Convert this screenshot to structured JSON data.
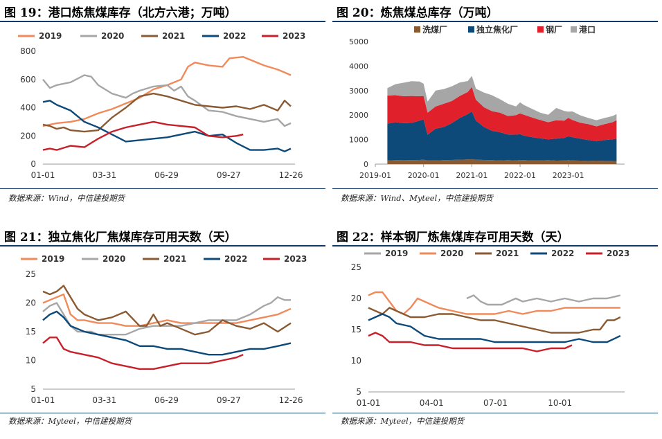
{
  "colors": {
    "y2019": "#f08a5a",
    "y2020": "#a6a6a6",
    "y2021": "#8a5a32",
    "y2022": "#0d4a7a",
    "y2023": "#c8202a",
    "washer": "#8a5a32",
    "independent": "#0d4a7a",
    "steel": "#e0202a",
    "port": "#a6a6a6",
    "rule": "#0d3a6b"
  },
  "panels": [
    {
      "title": "图 19：港口炼焦煤库存（北方六港；万吨）",
      "source": "数据来源：Wind，中信建投期货"
    },
    {
      "title": "图 20：炼焦煤总库存（万吨）",
      "source": "数据来源：Wind、Myteel，中信建投期货"
    },
    {
      "title": "图 21：独立焦化厂焦煤库存可用天数（天）",
      "source": "数据来源：Myteel，中信建投期货"
    },
    {
      "title": "图 22：样本钢厂炼焦煤库存可用天数（天）",
      "source": "数据来源：Myteel，中信建投期货"
    }
  ],
  "chart_data": [
    {
      "type": "line",
      "title": "图 19：港口炼焦煤库存（北方六港；万吨）",
      "ylim": [
        0,
        800
      ],
      "yticks": [
        0,
        200,
        400,
        600,
        800
      ],
      "xticks": [
        "01-01",
        "03-31",
        "06-29",
        "09-27",
        "12-26"
      ],
      "x_days": [
        0,
        89,
        179,
        269,
        359
      ],
      "series": [
        {
          "name": "2019",
          "key": "y2019",
          "x": [
            0,
            20,
            40,
            60,
            80,
            100,
            120,
            140,
            160,
            180,
            200,
            210,
            220,
            240,
            260,
            270,
            290,
            300,
            320,
            340,
            350,
            359
          ],
          "values": [
            270,
            290,
            300,
            320,
            360,
            390,
            430,
            470,
            530,
            560,
            600,
            690,
            720,
            700,
            690,
            750,
            760,
            740,
            700,
            670,
            650,
            630
          ]
        },
        {
          "name": "2020",
          "key": "y2020",
          "x": [
            0,
            10,
            20,
            40,
            60,
            70,
            80,
            90,
            100,
            120,
            130,
            140,
            160,
            180,
            190,
            200,
            210,
            220,
            240,
            260,
            280,
            300,
            320,
            340,
            350,
            359
          ],
          "values": [
            600,
            540,
            560,
            580,
            630,
            620,
            560,
            530,
            500,
            470,
            500,
            520,
            550,
            560,
            520,
            550,
            480,
            450,
            380,
            370,
            340,
            320,
            300,
            320,
            270,
            290
          ]
        },
        {
          "name": "2021",
          "key": "y2021",
          "x": [
            0,
            10,
            20,
            30,
            40,
            60,
            80,
            100,
            120,
            140,
            160,
            180,
            200,
            220,
            240,
            260,
            280,
            300,
            320,
            340,
            350,
            359
          ],
          "values": [
            280,
            270,
            250,
            260,
            240,
            230,
            240,
            330,
            400,
            480,
            500,
            480,
            450,
            420,
            410,
            400,
            410,
            390,
            420,
            380,
            450,
            410
          ]
        },
        {
          "name": "2022",
          "key": "y2022",
          "x": [
            0,
            10,
            20,
            40,
            60,
            80,
            100,
            120,
            140,
            160,
            180,
            200,
            220,
            240,
            260,
            280,
            300,
            320,
            340,
            350,
            359
          ],
          "values": [
            440,
            450,
            420,
            380,
            300,
            260,
            210,
            160,
            170,
            180,
            190,
            210,
            230,
            200,
            210,
            150,
            100,
            100,
            110,
            90,
            110
          ]
        },
        {
          "name": "2023",
          "key": "y2023",
          "x": [
            0,
            10,
            20,
            40,
            60,
            80,
            100,
            120,
            140,
            160,
            180,
            200,
            220,
            240,
            260,
            280,
            290
          ],
          "values": [
            100,
            110,
            100,
            130,
            120,
            180,
            230,
            260,
            280,
            300,
            280,
            270,
            260,
            200,
            190,
            200,
            210
          ]
        }
      ]
    },
    {
      "type": "area",
      "title": "图 20：炼焦煤总库存（万吨）",
      "ylim": [
        0,
        5000
      ],
      "yticks": [
        0,
        1000,
        2000,
        3000,
        4000,
        5000
      ],
      "xticks": [
        "2019-01",
        "2020-01",
        "2021-01",
        "2022-01",
        "2023-01"
      ],
      "x_months": [
        0,
        12,
        24,
        36,
        48
      ],
      "legend": [
        "洗煤厂",
        "独立焦化厂",
        "钢厂",
        "港口"
      ],
      "months": [
        3,
        5,
        7,
        9,
        11,
        12,
        13,
        15,
        17,
        19,
        21,
        23,
        24,
        25,
        27,
        29,
        31,
        33,
        35,
        36,
        37,
        39,
        41,
        43,
        45,
        47,
        48,
        49,
        51,
        53,
        55,
        57,
        59,
        60
      ],
      "series": [
        {
          "name": "洗煤厂",
          "key": "washer",
          "values": [
            150,
            160,
            170,
            160,
            170,
            180,
            150,
            150,
            160,
            170,
            180,
            190,
            200,
            180,
            170,
            160,
            150,
            160,
            150,
            170,
            160,
            150,
            150,
            160,
            140,
            150,
            160,
            150,
            140,
            130,
            140,
            130,
            130,
            120
          ]
        },
        {
          "name": "独立焦化厂",
          "key": "independent",
          "values": [
            1500,
            1550,
            1500,
            1520,
            1600,
            1650,
            1050,
            1300,
            1350,
            1500,
            1700,
            1850,
            1950,
            1600,
            1350,
            1200,
            1150,
            1050,
            1050,
            1050,
            1000,
            950,
            900,
            850,
            900,
            920,
            980,
            950,
            900,
            850,
            800,
            850,
            880,
            920
          ]
        },
        {
          "name": "钢厂",
          "key": "steel",
          "values": [
            1150,
            1100,
            1100,
            1100,
            1000,
            950,
            900,
            900,
            950,
            900,
            900,
            900,
            1000,
            850,
            800,
            800,
            800,
            750,
            800,
            850,
            850,
            800,
            750,
            700,
            750,
            700,
            750,
            700,
            650,
            650,
            600,
            650,
            700,
            750
          ]
        },
        {
          "name": "港口",
          "key": "port",
          "values": [
            300,
            450,
            550,
            600,
            600,
            500,
            450,
            650,
            600,
            600,
            550,
            450,
            450,
            450,
            600,
            650,
            550,
            500,
            350,
            450,
            400,
            350,
            300,
            300,
            500,
            400,
            250,
            350,
            300,
            250,
            250,
            250,
            250,
            250
          ]
        }
      ]
    },
    {
      "type": "line",
      "title": "图 21：独立焦化厂焦煤库存可用天数（天）",
      "ylim": [
        5,
        25
      ],
      "yticks": [
        5,
        10,
        15,
        20,
        25
      ],
      "xticks": [
        "01-01",
        "03-31",
        "06-29",
        "09-27",
        "12-26"
      ],
      "x_days": [
        0,
        89,
        179,
        269,
        359
      ],
      "series": [
        {
          "name": "2019",
          "key": "y2019",
          "x": [
            0,
            10,
            20,
            30,
            40,
            50,
            60,
            80,
            100,
            120,
            140,
            160,
            180,
            200,
            220,
            240,
            260,
            280,
            300,
            320,
            340,
            359
          ],
          "values": [
            20,
            20.5,
            21,
            21.5,
            18,
            17,
            17,
            16.5,
            16.5,
            16,
            16,
            16.5,
            17,
            16.5,
            16.5,
            16.5,
            16.5,
            16.5,
            17,
            17.5,
            18,
            19
          ]
        },
        {
          "name": "2020",
          "key": "y2020",
          "x": [
            0,
            10,
            20,
            30,
            40,
            50,
            60,
            70,
            80,
            90,
            100,
            120,
            140,
            160,
            180,
            200,
            220,
            240,
            260,
            280,
            300,
            320,
            330,
            340,
            350,
            359
          ],
          "values": [
            18.5,
            19.5,
            20,
            18,
            16,
            15,
            15,
            15,
            14.5,
            14.5,
            14.5,
            14.5,
            15.5,
            16,
            16,
            16,
            16.5,
            17,
            17,
            17,
            18,
            19.5,
            20,
            21,
            20.5,
            20.5
          ]
        },
        {
          "name": "2021",
          "key": "y2021",
          "x": [
            0,
            10,
            20,
            30,
            40,
            50,
            60,
            80,
            100,
            120,
            140,
            150,
            160,
            170,
            180,
            200,
            220,
            240,
            260,
            280,
            300,
            320,
            340,
            359
          ],
          "values": [
            22,
            21.5,
            22,
            23,
            21,
            19,
            18,
            17,
            17.5,
            18.5,
            16,
            16,
            18,
            16,
            16.5,
            15.5,
            14.5,
            15,
            17,
            16,
            15.5,
            16.5,
            15,
            16.5
          ]
        },
        {
          "name": "2022",
          "key": "y2022",
          "x": [
            0,
            10,
            20,
            30,
            40,
            60,
            80,
            100,
            120,
            140,
            160,
            180,
            200,
            220,
            240,
            260,
            280,
            300,
            320,
            340,
            359
          ],
          "values": [
            17,
            18,
            18.5,
            17.5,
            16,
            15,
            14.5,
            14,
            13.5,
            12.5,
            12.5,
            12,
            12,
            11.5,
            11,
            11,
            11.5,
            12,
            12,
            12.5,
            13
          ]
        },
        {
          "name": "2023",
          "key": "y2023",
          "x": [
            0,
            10,
            20,
            30,
            40,
            60,
            80,
            100,
            120,
            140,
            160,
            180,
            200,
            220,
            240,
            260,
            280,
            290
          ],
          "values": [
            13,
            14,
            14,
            12,
            11.5,
            11,
            10.5,
            9.5,
            9,
            8.5,
            8.5,
            9,
            9.5,
            9.5,
            9.5,
            10,
            10.5,
            11
          ]
        }
      ]
    },
    {
      "type": "line",
      "title": "图 22：样本钢厂炼焦煤库存可用天数（天）",
      "ylim": [
        5,
        25
      ],
      "yticks": [
        5,
        10,
        15,
        20,
        25
      ],
      "xticks": [
        "01-01",
        "04-01",
        "07-01",
        "10-01"
      ],
      "x_days": [
        0,
        90,
        181,
        273
      ],
      "series": [
        {
          "name": "2019",
          "key": "y2020",
          "x": [
            140,
            150,
            160,
            170,
            180,
            190,
            200,
            210,
            220,
            240,
            260,
            280,
            300,
            320,
            340,
            359
          ],
          "values": [
            20,
            20.5,
            19.5,
            19,
            19,
            19,
            19.5,
            20,
            19.5,
            20,
            19.5,
            20,
            19.5,
            20,
            20,
            20.5
          ]
        },
        {
          "name": "2020",
          "key": "y2019",
          "x": [
            0,
            10,
            20,
            30,
            40,
            50,
            60,
            70,
            80,
            100,
            120,
            140,
            160,
            180,
            200,
            220,
            240,
            260,
            280,
            300,
            320,
            340,
            359
          ],
          "values": [
            20.5,
            21,
            21,
            19.5,
            18,
            17.5,
            18.5,
            20,
            19.5,
            18.5,
            18,
            17.5,
            17.5,
            17.5,
            18,
            17.5,
            18,
            18,
            18.5,
            18.5,
            18.5,
            18.5,
            18.5
          ]
        },
        {
          "name": "2021",
          "key": "y2021",
          "x": [
            0,
            10,
            20,
            30,
            40,
            60,
            80,
            100,
            120,
            140,
            160,
            180,
            200,
            220,
            240,
            260,
            280,
            300,
            320,
            330,
            340,
            350,
            359
          ],
          "values": [
            18.5,
            18,
            17.5,
            18.5,
            18,
            17,
            17,
            17.5,
            17.5,
            17,
            16.5,
            16.5,
            16,
            15.5,
            15,
            14.5,
            14.5,
            14.5,
            15,
            15,
            16.5,
            16.5,
            17
          ]
        },
        {
          "name": "2022",
          "key": "y2022",
          "x": [
            0,
            10,
            20,
            30,
            40,
            60,
            80,
            100,
            120,
            140,
            160,
            180,
            200,
            220,
            240,
            260,
            280,
            300,
            320,
            340,
            359
          ],
          "values": [
            16.5,
            17,
            17.5,
            17,
            16,
            15.5,
            14,
            13.5,
            13.5,
            13.5,
            13.5,
            13,
            13,
            13,
            13,
            13,
            13,
            13.5,
            13,
            13,
            14
          ]
        },
        {
          "name": "2023",
          "key": "y2023",
          "x": [
            0,
            10,
            20,
            30,
            40,
            60,
            80,
            100,
            120,
            140,
            160,
            180,
            200,
            220,
            240,
            260,
            280,
            290
          ],
          "values": [
            14,
            14.5,
            14,
            13,
            13,
            13,
            12.5,
            12.5,
            12,
            12,
            12,
            12,
            12,
            12,
            11.5,
            12,
            12,
            12.5
          ]
        }
      ]
    }
  ]
}
